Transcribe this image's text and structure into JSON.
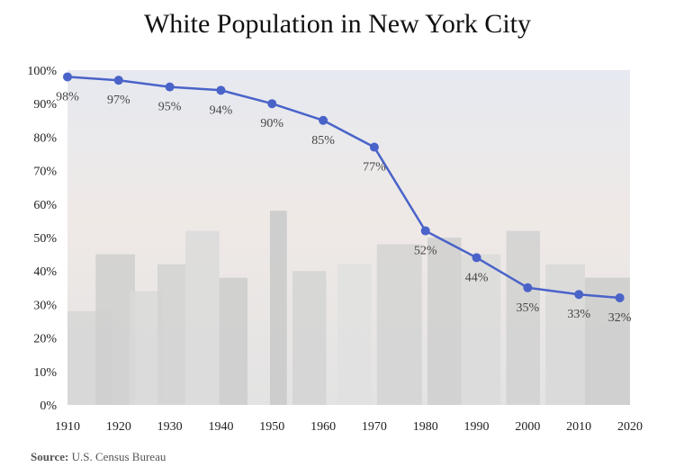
{
  "chart_data": {
    "type": "line",
    "title": "White Population in New York City",
    "x": [
      1910,
      1920,
      1930,
      1940,
      1950,
      1960,
      1970,
      1980,
      1990,
      2000,
      2010,
      2018
    ],
    "series": [
      {
        "values": [
          98,
          97,
          95,
          94,
          90,
          85,
          77,
          52,
          44,
          35,
          33,
          32
        ],
        "labels": [
          "98%",
          "97%",
          "95%",
          "94%",
          "90%",
          "85%",
          "77%",
          "52%",
          "44%",
          "35%",
          "33%",
          "32%"
        ],
        "color": "#4a63c9"
      }
    ],
    "x_ticks": [
      "1910",
      "1920",
      "1930",
      "1940",
      "1950",
      "1960",
      "1970",
      "1980",
      "1990",
      "2000",
      "2010",
      "2020"
    ],
    "y_ticks": [
      "0%",
      "10%",
      "20%",
      "30%",
      "40%",
      "50%",
      "60%",
      "70%",
      "80%",
      "90%",
      "100%"
    ],
    "xlim": [
      1910,
      2020
    ],
    "ylim": [
      0,
      100
    ],
    "grid": false,
    "background": "faded New York City skyline photograph"
  },
  "source": {
    "label": "Source:",
    "text": "U.S. Census Bureau"
  }
}
